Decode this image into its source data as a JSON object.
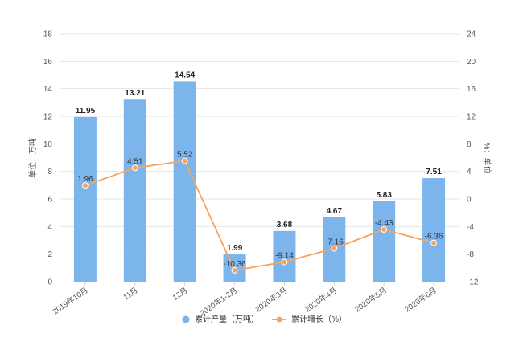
{
  "chart_data": {
    "type": "bar",
    "categories": [
      "2019年10月",
      "11月",
      "12月",
      "2020年1-2月",
      "2020年3月",
      "2020年4月",
      "2020年5月",
      "2020年6月"
    ],
    "series": [
      {
        "name": "累计产量（万吨）",
        "type": "bar",
        "axis": "left",
        "values": [
          11.95,
          13.21,
          14.54,
          1.99,
          3.68,
          4.67,
          5.83,
          7.51
        ],
        "labels": [
          "11.95",
          "13.21",
          "14.54",
          "1.99",
          "3.68",
          "4.67",
          "5.83",
          "7.51"
        ],
        "color": "#7cb5ec"
      },
      {
        "name": "累计增长（%）",
        "type": "line",
        "axis": "right",
        "values": [
          1.96,
          4.51,
          5.52,
          -10.36,
          -9.14,
          -7.16,
          -4.43,
          -6.36
        ],
        "labels": [
          "1.96",
          "4.51",
          "5.52",
          "-10.36",
          "-9.14",
          "-7.16",
          "-4.43",
          "-6.36"
        ],
        "color": "#f7a35c"
      }
    ],
    "ylabel": "单位：万吨",
    "y2label": "%：单位",
    "ylim": [
      0,
      18
    ],
    "y_ticks": [
      "0",
      "2",
      "4",
      "6",
      "8",
      "10",
      "12",
      "14",
      "16",
      "18"
    ],
    "y2lim": [
      -12,
      24
    ],
    "y2_ticks": [
      "-12",
      "-8",
      "-4",
      "0",
      "4",
      "8",
      "12",
      "16",
      "20",
      "24"
    ],
    "grid": true,
    "legend_position": "bottom"
  },
  "legend": {
    "bar_label": "累计产量（万吨）",
    "line_label": "累计增长（%）"
  }
}
